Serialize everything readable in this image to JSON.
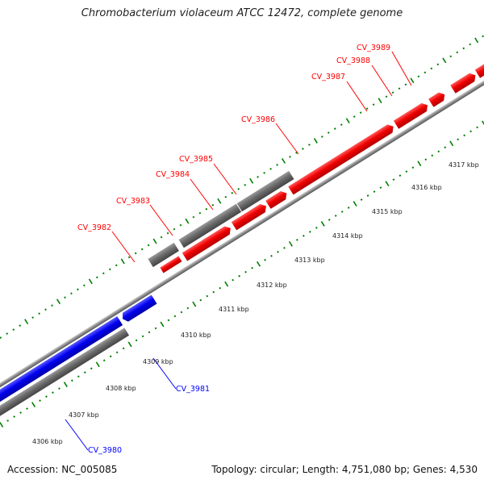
{
  "title": "Chromobacterium violaceum ATCC 12472, complete genome",
  "footer": {
    "accession": "Accession: NC_005085",
    "summary": "Topology: circular; Length: 4,751,080 bp; Genes: 4,530"
  },
  "colors": {
    "forward": "#ff0000",
    "reverse": "#0000ff",
    "other": "#666666",
    "ticks": "#008000"
  },
  "scale_labels": [
    "4306 kbp",
    "4307 kbp",
    "4308 kbp",
    "4309 kbp",
    "4310 kbp",
    "4311 kbp",
    "4312 kbp",
    "4313 kbp",
    "4314 kbp",
    "4315 kbp",
    "4316 kbp",
    "4317 kbp"
  ],
  "gene_labels": {
    "forward": [
      "CV_3982",
      "CV_3983",
      "CV_3984",
      "CV_3985",
      "CV_3986",
      "CV_3987",
      "CV_3988",
      "CV_3989"
    ],
    "reverse": [
      "CV_3981",
      "CV_3980"
    ]
  }
}
